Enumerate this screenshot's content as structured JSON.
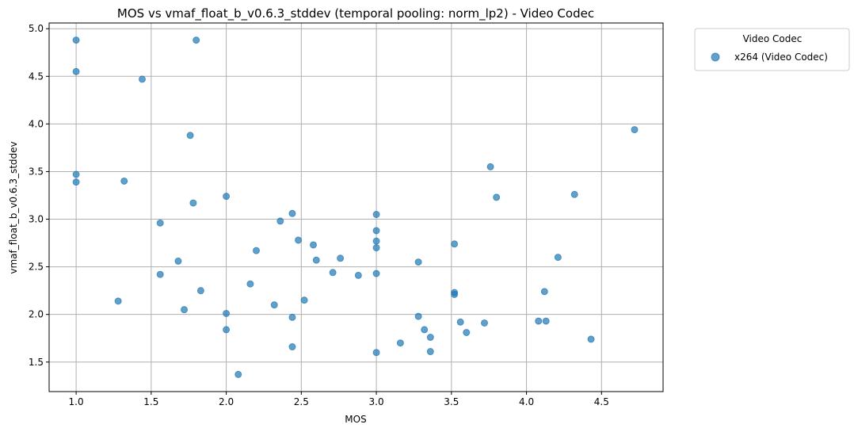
{
  "chart_data": {
    "type": "scatter",
    "title": "MOS vs vmaf_float_b_v0.6.3_stddev (temporal pooling: norm_lp2) - Video Codec",
    "xlabel": "MOS",
    "ylabel": "vmaf_float_b_v0.6.3_stddev",
    "xlim": [
      0.82,
      4.91
    ],
    "ylim": [
      1.19,
      5.06
    ],
    "grid": true,
    "xticks": [
      1.0,
      1.5,
      2.0,
      2.5,
      3.0,
      3.5,
      4.0,
      4.5
    ],
    "xtick_labels": [
      "1.0",
      "1.5",
      "2.0",
      "2.5",
      "3.0",
      "3.5",
      "4.0",
      "4.5"
    ],
    "yticks": [
      1.5,
      2.0,
      2.5,
      3.0,
      3.5,
      4.0,
      4.5,
      5.0
    ],
    "ytick_labels": [
      "1.5",
      "2.0",
      "2.5",
      "3.0",
      "3.5",
      "4.0",
      "4.5",
      "5.0"
    ],
    "legend": {
      "title": "Video Codec",
      "placement": "outside-upper-right",
      "entries": [
        "x264 (Video Codec)"
      ]
    },
    "color": "#1f77b4",
    "series": [
      {
        "name": "x264 (Video Codec)",
        "points": [
          [
            1.0,
            4.88
          ],
          [
            1.0,
            4.55
          ],
          [
            1.0,
            3.47
          ],
          [
            1.0,
            3.39
          ],
          [
            1.28,
            2.14
          ],
          [
            1.32,
            3.4
          ],
          [
            1.44,
            4.47
          ],
          [
            1.56,
            2.96
          ],
          [
            1.56,
            2.42
          ],
          [
            1.68,
            2.56
          ],
          [
            1.72,
            2.05
          ],
          [
            1.76,
            3.88
          ],
          [
            1.78,
            3.17
          ],
          [
            1.8,
            4.88
          ],
          [
            1.83,
            2.25
          ],
          [
            2.0,
            3.24
          ],
          [
            2.0,
            2.01
          ],
          [
            2.0,
            1.84
          ],
          [
            2.08,
            1.37
          ],
          [
            2.16,
            2.32
          ],
          [
            2.2,
            2.67
          ],
          [
            2.32,
            2.1
          ],
          [
            2.36,
            2.98
          ],
          [
            2.44,
            3.06
          ],
          [
            2.44,
            1.97
          ],
          [
            2.44,
            1.66
          ],
          [
            2.48,
            2.78
          ],
          [
            2.52,
            2.15
          ],
          [
            2.58,
            2.73
          ],
          [
            2.6,
            2.57
          ],
          [
            2.71,
            2.44
          ],
          [
            2.76,
            2.59
          ],
          [
            2.88,
            2.41
          ],
          [
            3.0,
            3.05
          ],
          [
            3.0,
            2.88
          ],
          [
            3.0,
            2.77
          ],
          [
            3.0,
            2.7
          ],
          [
            3.0,
            2.43
          ],
          [
            3.0,
            1.6
          ],
          [
            3.16,
            1.7
          ],
          [
            3.28,
            2.55
          ],
          [
            3.28,
            1.98
          ],
          [
            3.32,
            1.84
          ],
          [
            3.36,
            1.76
          ],
          [
            3.36,
            1.61
          ],
          [
            3.52,
            2.74
          ],
          [
            3.52,
            2.23
          ],
          [
            3.52,
            2.21
          ],
          [
            3.56,
            1.92
          ],
          [
            3.6,
            1.81
          ],
          [
            3.72,
            1.91
          ],
          [
            3.76,
            3.55
          ],
          [
            3.8,
            3.23
          ],
          [
            4.08,
            1.93
          ],
          [
            4.12,
            2.24
          ],
          [
            4.13,
            1.93
          ],
          [
            4.21,
            2.6
          ],
          [
            4.32,
            3.26
          ],
          [
            4.43,
            1.74
          ],
          [
            4.72,
            3.94
          ]
        ]
      }
    ]
  }
}
